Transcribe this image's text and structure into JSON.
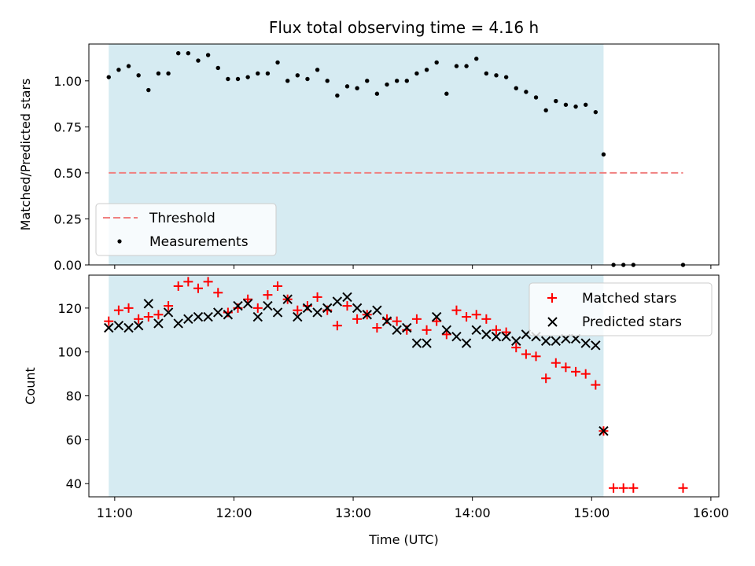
{
  "chart_data": [
    {
      "type": "scatter",
      "title": "Flux total observing time = 4.16 h",
      "ylabel": "Matched/Predicted stars",
      "xlabel": "",
      "xlim": [
        "10:47",
        "16:04"
      ],
      "ylim": [
        0,
        1.2
      ],
      "x_ticks": [
        "11:00",
        "12:00",
        "13:00",
        "14:00",
        "15:00",
        "16:00"
      ],
      "y_ticks": [
        "0.00",
        "0.25",
        "0.50",
        "0.75",
        "1.00"
      ],
      "shaded_interval": [
        "10:57",
        "15:06"
      ],
      "shade_color": "#add8e6",
      "threshold": {
        "name": "Threshold",
        "value": 0.5,
        "x_range": [
          "10:57",
          "15:46"
        ],
        "color": "#f08080"
      },
      "series": [
        {
          "name": "Measurements",
          "marker": "dot",
          "color": "#000000",
          "x": [
            "10:57",
            "11:02",
            "11:07",
            "11:12",
            "11:17",
            "11:22",
            "11:27",
            "11:32",
            "11:37",
            "11:42",
            "11:47",
            "11:52",
            "11:57",
            "12:02",
            "12:07",
            "12:12",
            "12:17",
            "12:22",
            "12:27",
            "12:32",
            "12:37",
            "12:42",
            "12:47",
            "12:52",
            "12:57",
            "13:02",
            "13:07",
            "13:12",
            "13:17",
            "13:22",
            "13:27",
            "13:32",
            "13:37",
            "13:42",
            "13:47",
            "13:52",
            "13:57",
            "14:02",
            "14:07",
            "14:12",
            "14:17",
            "14:22",
            "14:27",
            "14:32",
            "14:37",
            "14:42",
            "14:47",
            "14:52",
            "14:57",
            "15:02",
            "15:06",
            "15:11",
            "15:16",
            "15:21",
            "15:46"
          ],
          "values": [
            1.02,
            1.06,
            1.08,
            1.03,
            0.95,
            1.04,
            1.04,
            1.15,
            1.15,
            1.11,
            1.14,
            1.07,
            1.01,
            1.01,
            1.02,
            1.04,
            1.04,
            1.1,
            1.0,
            1.03,
            1.01,
            1.06,
            1.0,
            0.92,
            0.97,
            0.96,
            1.0,
            0.93,
            0.98,
            1.0,
            1.0,
            1.04,
            1.06,
            1.1,
            0.93,
            1.08,
            1.08,
            1.12,
            1.04,
            1.03,
            1.02,
            0.96,
            0.94,
            0.91,
            0.84,
            0.89,
            0.87,
            0.86,
            0.87,
            0.83,
            0.6,
            0.0,
            0.0,
            0.0,
            0.0
          ]
        }
      ]
    },
    {
      "type": "scatter",
      "title": "",
      "ylabel": "Count",
      "xlabel": "Time (UTC)",
      "xlim": [
        "10:47",
        "16:04"
      ],
      "ylim": [
        34,
        135
      ],
      "x_ticks": [
        "11:00",
        "12:00",
        "13:00",
        "14:00",
        "15:00",
        "16:00"
      ],
      "y_ticks": [
        "40",
        "60",
        "80",
        "100",
        "120"
      ],
      "shaded_interval": [
        "10:57",
        "15:06"
      ],
      "shade_color": "#add8e6",
      "series": [
        {
          "name": "Matched stars",
          "marker": "plus",
          "color": "#ff0000",
          "x": [
            "10:57",
            "11:02",
            "11:07",
            "11:12",
            "11:17",
            "11:22",
            "11:27",
            "11:32",
            "11:37",
            "11:42",
            "11:47",
            "11:52",
            "11:57",
            "12:02",
            "12:07",
            "12:12",
            "12:17",
            "12:22",
            "12:27",
            "12:32",
            "12:37",
            "12:42",
            "12:47",
            "12:52",
            "12:57",
            "13:02",
            "13:07",
            "13:12",
            "13:17",
            "13:22",
            "13:27",
            "13:32",
            "13:37",
            "13:42",
            "13:47",
            "13:52",
            "13:57",
            "14:02",
            "14:07",
            "14:12",
            "14:17",
            "14:22",
            "14:27",
            "14:32",
            "14:37",
            "14:42",
            "14:47",
            "14:52",
            "14:57",
            "15:02",
            "15:06",
            "15:11",
            "15:16",
            "15:21",
            "15:46"
          ],
          "values": [
            114,
            119,
            120,
            115,
            116,
            117,
            121,
            130,
            132,
            129,
            132,
            127,
            118,
            120,
            124,
            120,
            126,
            130,
            124,
            119,
            121,
            125,
            119,
            112,
            121,
            115,
            117,
            111,
            115,
            114,
            110,
            115,
            110,
            114,
            108,
            119,
            116,
            117,
            115,
            110,
            109,
            102,
            99,
            98,
            88,
            95,
            93,
            91,
            90,
            85,
            64,
            38,
            38,
            38,
            38
          ]
        },
        {
          "name": "Predicted stars",
          "marker": "x",
          "color": "#000000",
          "x": [
            "10:57",
            "11:02",
            "11:07",
            "11:12",
            "11:17",
            "11:22",
            "11:27",
            "11:32",
            "11:37",
            "11:42",
            "11:47",
            "11:52",
            "11:57",
            "12:02",
            "12:07",
            "12:12",
            "12:17",
            "12:22",
            "12:27",
            "12:32",
            "12:37",
            "12:42",
            "12:47",
            "12:52",
            "12:57",
            "13:02",
            "13:07",
            "13:12",
            "13:17",
            "13:22",
            "13:27",
            "13:32",
            "13:37",
            "13:42",
            "13:47",
            "13:52",
            "13:57",
            "14:02",
            "14:07",
            "14:12",
            "14:17",
            "14:22",
            "14:27",
            "14:32",
            "14:37",
            "14:42",
            "14:47",
            "14:52",
            "14:57",
            "15:02",
            "15:06"
          ],
          "values": [
            111,
            112,
            111,
            112,
            122,
            113,
            118,
            113,
            115,
            116,
            116,
            118,
            117,
            121,
            122,
            116,
            121,
            118,
            124,
            116,
            120,
            118,
            120,
            123,
            125,
            120,
            117,
            119,
            114,
            110,
            111,
            104,
            104,
            116,
            110,
            107,
            104,
            110,
            108,
            107,
            107,
            105,
            108,
            107,
            105,
            105,
            106,
            106,
            104,
            103,
            64
          ]
        }
      ]
    }
  ]
}
